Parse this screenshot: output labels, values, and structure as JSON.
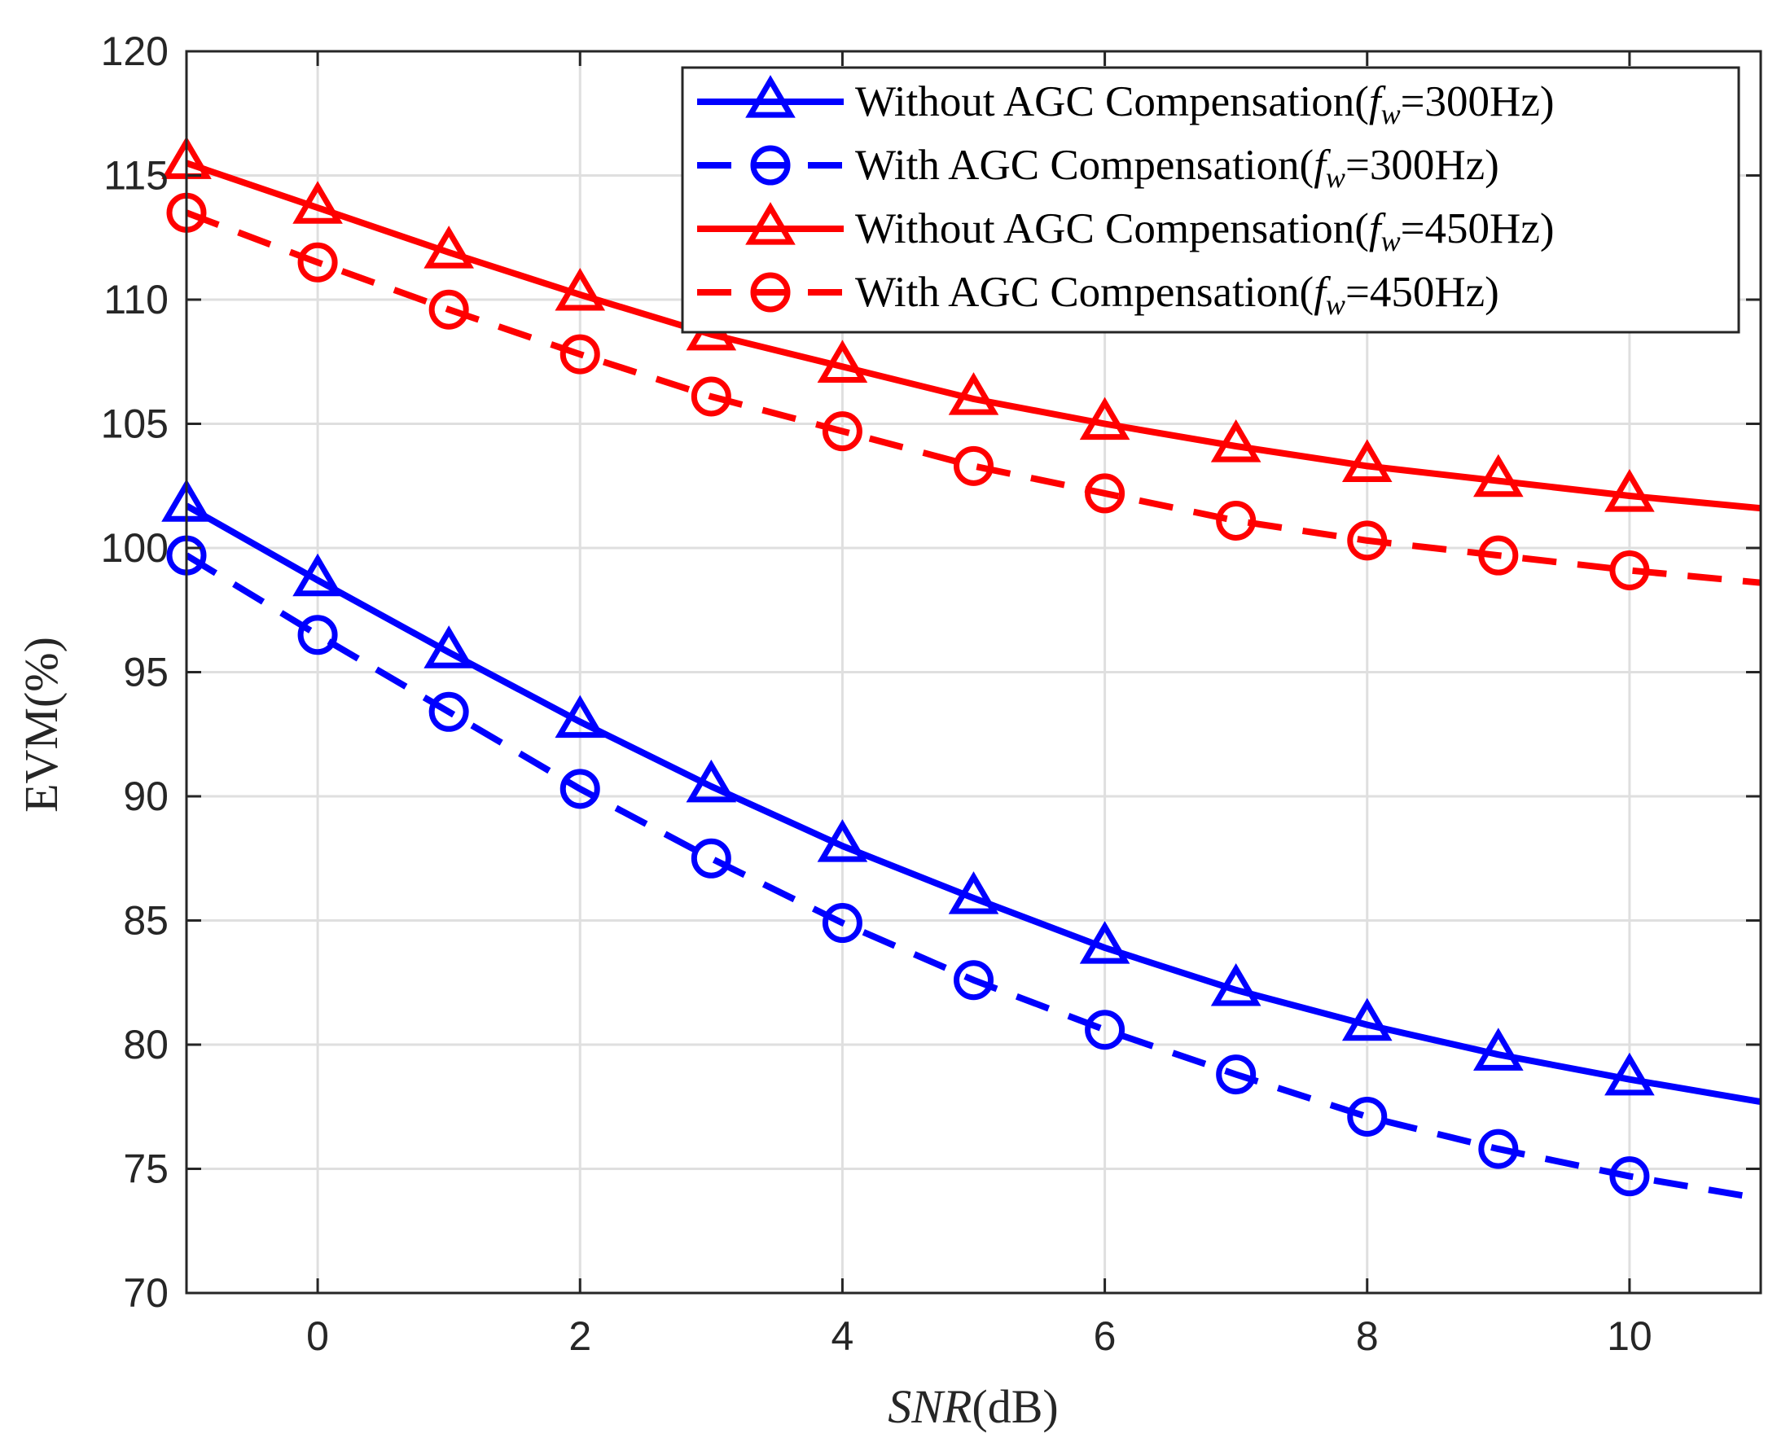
{
  "chart_data": {
    "type": "line",
    "title": "",
    "xlabel_italic": "SNR",
    "xlabel_unit": "(dB)",
    "ylabel": "EVM(%)",
    "xlim": [
      -1,
      11
    ],
    "ylim": [
      70,
      120
    ],
    "xticks": [
      0,
      2,
      4,
      6,
      8,
      10
    ],
    "yticks": [
      70,
      75,
      80,
      85,
      90,
      95,
      100,
      105,
      110,
      115,
      120
    ],
    "grid": true,
    "legend_position": "top-right",
    "x": [
      -1,
      0,
      1,
      2,
      3,
      4,
      5,
      6,
      7,
      8,
      9,
      10,
      11
    ],
    "series": [
      {
        "name": "Without AGC Compensation(fw=300Hz)",
        "legend_prefix": "Without AGC Compensation(",
        "legend_var": "f",
        "legend_sub": "w",
        "legend_suffix": "=300Hz)",
        "color": "#0000ff",
        "dash": "solid",
        "marker": "triangle",
        "values": [
          101.7,
          98.7,
          95.8,
          93.0,
          90.4,
          88.0,
          85.9,
          83.9,
          82.2,
          80.8,
          79.6,
          78.6,
          77.7
        ]
      },
      {
        "name": "With AGC Compensation(fw=300Hz)",
        "legend_prefix": "With AGC Compensation(",
        "legend_var": "f",
        "legend_sub": "w",
        "legend_suffix": "=300Hz)",
        "color": "#0000ff",
        "dash": "dashed",
        "marker": "circle",
        "values": [
          99.7,
          96.5,
          93.4,
          90.3,
          87.5,
          84.9,
          82.6,
          80.6,
          78.8,
          77.1,
          75.8,
          74.7,
          73.8
        ]
      },
      {
        "name": "Without AGC Compensation(fw=450Hz)",
        "legend_prefix": "Without AGC Compensation(",
        "legend_var": "f",
        "legend_sub": "w",
        "legend_suffix": "=450Hz)",
        "color": "#ff0000",
        "dash": "solid",
        "marker": "triangle",
        "values": [
          115.5,
          113.7,
          111.9,
          110.2,
          108.6,
          107.3,
          106.0,
          105.0,
          104.1,
          103.3,
          102.7,
          102.1,
          101.6
        ]
      },
      {
        "name": "With AGC Compensation(fw=450Hz)",
        "legend_prefix": "With AGC Compensation(",
        "legend_var": "f",
        "legend_sub": "w",
        "legend_suffix": "=450Hz)",
        "color": "#ff0000",
        "dash": "dashed",
        "marker": "circle",
        "values": [
          113.5,
          111.5,
          109.6,
          107.8,
          106.1,
          104.7,
          103.3,
          102.2,
          101.1,
          100.3,
          99.7,
          99.1,
          98.6
        ]
      }
    ]
  }
}
